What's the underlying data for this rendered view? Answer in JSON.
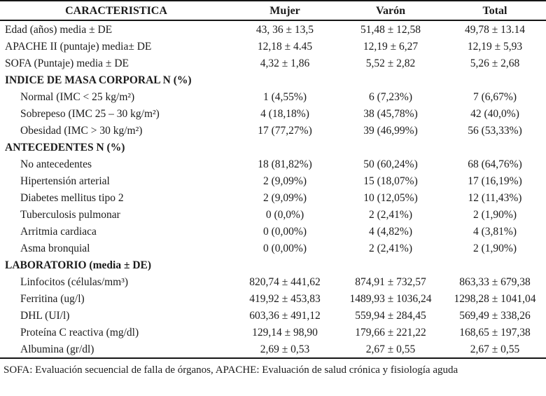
{
  "table": {
    "columns": {
      "caracteristica": "CARACTERISTICA",
      "mujer": "Mujer",
      "varon": "Varón",
      "total": "Total"
    },
    "rows": [
      {
        "type": "data",
        "label": "Edad (años) media ± DE",
        "mujer": "43, 36 ± 13,5",
        "varon": "51,48 ± 12,58",
        "total": "49,78 ± 13.14"
      },
      {
        "type": "data",
        "label": "APACHE II (puntaje) media± DE",
        "mujer": "12,18 ± 4.45",
        "varon": "12,19 ± 6,27",
        "total": "12,19 ± 5,93"
      },
      {
        "type": "data",
        "label": "SOFA (Puntaje) media ± DE",
        "mujer": "4,32 ± 1,86",
        "varon": "5,52 ± 2,82",
        "total": "5,26 ± 2,68"
      },
      {
        "type": "section",
        "label": "INDICE DE MASA CORPORAL N (%)"
      },
      {
        "type": "sub",
        "label": "Normal (IMC < 25 kg/m²)",
        "mujer": "1 (4,55%)",
        "varon": "6 (7,23%)",
        "total": "7 (6,67%)"
      },
      {
        "type": "sub",
        "label": "Sobrepeso (IMC 25 – 30 kg/m²)",
        "mujer": "4 (18,18%)",
        "varon": "38 (45,78%)",
        "total": "42 (40,0%)"
      },
      {
        "type": "sub",
        "label": "Obesidad (IMC > 30 kg/m²)",
        "mujer": "17 (77,27%)",
        "varon": "39 (46,99%)",
        "total": "56 (53,33%)"
      },
      {
        "type": "section",
        "label": "ANTECEDENTES N (%)"
      },
      {
        "type": "sub",
        "label": "No antecedentes",
        "mujer": "18 (81,82%)",
        "varon": "50 (60,24%)",
        "total": "68 (64,76%)"
      },
      {
        "type": "sub",
        "label": "Hipertensión arterial",
        "mujer": "2 (9,09%)",
        "varon": "15 (18,07%)",
        "total": "17 (16,19%)"
      },
      {
        "type": "sub",
        "label": "Diabetes mellitus tipo 2",
        "mujer": "2 (9,09%)",
        "varon": "10 (12,05%)",
        "total": "12 (11,43%)"
      },
      {
        "type": "sub",
        "label": "Tuberculosis pulmonar",
        "mujer": "0 (0,0%)",
        "varon": "2 (2,41%)",
        "total": "2 (1,90%)"
      },
      {
        "type": "sub",
        "label": "Arritmia cardiaca",
        "mujer": "0 (0,00%)",
        "varon": "4 (4,82%)",
        "total": "4 (3,81%)"
      },
      {
        "type": "sub",
        "label": "Asma bronquial",
        "mujer": "0 (0,00%)",
        "varon": "2 (2,41%)",
        "total": "2 (1,90%)"
      },
      {
        "type": "section",
        "label": "LABORATORIO (media ± DE)"
      },
      {
        "type": "sub",
        "label": "Linfocitos (células/mm³)",
        "mujer": "820,74 ± 441,62",
        "varon": "874,91 ± 732,57",
        "total": "863,33 ± 679,38"
      },
      {
        "type": "sub",
        "label": "Ferritina (ug/l)",
        "mujer": "419,92 ± 453,83",
        "varon": "1489,93 ± 1036,24",
        "total": "1298,28 ± 1041,04"
      },
      {
        "type": "sub",
        "label": "DHL (UI/l)",
        "mujer": "603,36 ± 491,12",
        "varon": "559,94 ± 284,45",
        "total": "569,49 ± 338,26"
      },
      {
        "type": "sub",
        "label": "Proteína C reactiva (mg/dl)",
        "mujer": "129,14 ± 98,90",
        "varon": "179,66 ± 221,22",
        "total": "168,65 ± 197,38"
      },
      {
        "type": "sub",
        "label": "Albumina (gr/dl)",
        "mujer": "2,69 ± 0,53",
        "varon": "2,67 ± 0,55",
        "total": "2,67 ± 0,55"
      }
    ],
    "footnote": "SOFA: Evaluación secuencial de falla de órganos, APACHE: Evaluación de salud crónica y fisiología aguda"
  }
}
